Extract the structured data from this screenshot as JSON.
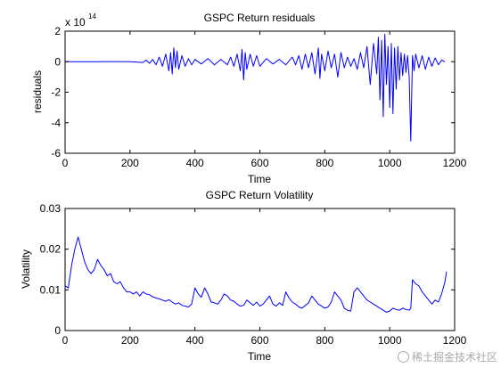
{
  "chart_data": [
    {
      "type": "line",
      "title": "GSPC Return residuals",
      "xlabel": "Time",
      "ylabel": "residuals",
      "exponent_label_prefix": "x 10",
      "exponent_label_power": "14",
      "xlim": [
        0,
        1200
      ],
      "ylim": [
        -6,
        2
      ],
      "xticks": [
        "0",
        "200",
        "400",
        "600",
        "800",
        "1000",
        "1200"
      ],
      "yticks": [
        "-6",
        "-4",
        "-2",
        "0",
        "2"
      ],
      "line_color": "#0000ff",
      "grid": false,
      "series": [
        {
          "x": [
            0,
            50,
            100,
            150,
            200,
            240,
            250,
            260,
            270,
            280,
            290,
            300,
            310,
            320,
            325,
            330,
            335,
            340,
            345,
            350,
            360,
            370,
            380,
            390,
            400,
            420,
            440,
            460,
            480,
            500,
            510,
            520,
            530,
            540,
            545,
            550,
            555,
            560,
            570,
            580,
            590,
            600,
            620,
            640,
            660,
            680,
            700,
            710,
            720,
            730,
            740,
            750,
            760,
            770,
            780,
            785,
            790,
            800,
            810,
            820,
            830,
            840,
            850,
            860,
            870,
            880,
            890,
            900,
            910,
            920,
            930,
            940,
            950,
            960,
            965,
            970,
            975,
            980,
            985,
            990,
            995,
            1000,
            1005,
            1010,
            1015,
            1020,
            1025,
            1030,
            1035,
            1040,
            1045,
            1050,
            1055,
            1060,
            1065,
            1070,
            1075,
            1080,
            1090,
            1100,
            1110,
            1120,
            1130,
            1140,
            1150,
            1160,
            1170
          ],
          "y": [
            0,
            0,
            0,
            0.01,
            0,
            -0.05,
            0.1,
            -0.1,
            0.15,
            -0.2,
            0.3,
            -0.3,
            0.5,
            -0.6,
            0.6,
            -0.8,
            0.9,
            -0.4,
            0.7,
            -0.5,
            0.4,
            -0.3,
            0.2,
            -0.2,
            0.15,
            -0.15,
            0.2,
            -0.2,
            0.15,
            -0.2,
            0.3,
            -0.3,
            0.5,
            -0.6,
            0.8,
            -1.2,
            0.6,
            -0.5,
            0.5,
            -0.3,
            0.4,
            -0.3,
            0.2,
            -0.15,
            0.15,
            -0.2,
            0.3,
            -0.2,
            0.4,
            -0.5,
            0.5,
            -0.4,
            0.6,
            -0.8,
            0.9,
            -1.1,
            0.5,
            -0.6,
            0.7,
            -0.4,
            0.5,
            -1.0,
            0.6,
            -0.4,
            0.3,
            -0.3,
            0.2,
            -0.5,
            0.6,
            -0.4,
            1.0,
            -1.5,
            1.2,
            -0.8,
            1.6,
            -2.5,
            1.4,
            -3.6,
            1.8,
            -1.5,
            1.0,
            -3.0,
            1.2,
            -3.4,
            0.9,
            -1.8,
            1.0,
            -1.2,
            0.6,
            -0.9,
            0.5,
            -0.7,
            0.4,
            -1.0,
            -5.2,
            0.4,
            -0.6,
            0.5,
            -0.4,
            0.4,
            -0.5,
            0.3,
            -0.3,
            0.25,
            -0.2,
            0.1,
            0
          ]
        }
      ]
    },
    {
      "type": "line",
      "title": "GSPC Return Volatility",
      "xlabel": "Time",
      "ylabel": "Volatility",
      "xlim": [
        0,
        1200
      ],
      "ylim": [
        0,
        0.03
      ],
      "xticks": [
        "0",
        "200",
        "400",
        "600",
        "800",
        "1000",
        "1200"
      ],
      "yticks": [
        "0",
        "0.01",
        "0.02",
        "0.03"
      ],
      "line_color": "#0000ff",
      "grid": false,
      "series": [
        {
          "x": [
            0,
            10,
            20,
            30,
            40,
            50,
            60,
            70,
            80,
            90,
            100,
            110,
            120,
            130,
            140,
            150,
            160,
            170,
            180,
            190,
            200,
            210,
            220,
            230,
            240,
            250,
            260,
            270,
            280,
            290,
            300,
            310,
            320,
            330,
            340,
            350,
            360,
            370,
            380,
            390,
            400,
            410,
            420,
            430,
            440,
            450,
            460,
            470,
            480,
            490,
            500,
            510,
            520,
            530,
            540,
            550,
            560,
            570,
            580,
            590,
            600,
            610,
            620,
            630,
            640,
            650,
            660,
            670,
            680,
            690,
            700,
            710,
            720,
            730,
            740,
            750,
            760,
            770,
            780,
            790,
            800,
            810,
            820,
            830,
            840,
            850,
            860,
            870,
            880,
            890,
            900,
            910,
            920,
            930,
            940,
            950,
            960,
            970,
            980,
            990,
            1000,
            1010,
            1020,
            1030,
            1040,
            1050,
            1060,
            1065,
            1070,
            1080,
            1090,
            1100,
            1110,
            1120,
            1130,
            1140,
            1150,
            1160,
            1170,
            1175
          ],
          "y": [
            0.011,
            0.0105,
            0.016,
            0.02,
            0.023,
            0.02,
            0.017,
            0.015,
            0.014,
            0.015,
            0.0175,
            0.016,
            0.015,
            0.0135,
            0.014,
            0.012,
            0.0115,
            0.012,
            0.0105,
            0.0095,
            0.0095,
            0.009,
            0.0095,
            0.0085,
            0.0095,
            0.009,
            0.0088,
            0.0083,
            0.008,
            0.0078,
            0.0075,
            0.0072,
            0.0076,
            0.007,
            0.0065,
            0.0068,
            0.0062,
            0.006,
            0.0058,
            0.0065,
            0.0105,
            0.009,
            0.0082,
            0.0105,
            0.009,
            0.007,
            0.0068,
            0.0065,
            0.0075,
            0.009,
            0.0085,
            0.0075,
            0.0072,
            0.0065,
            0.006,
            0.0062,
            0.0075,
            0.0068,
            0.0062,
            0.007,
            0.006,
            0.0065,
            0.0075,
            0.0085,
            0.0065,
            0.006,
            0.0068,
            0.0062,
            0.0095,
            0.008,
            0.007,
            0.0065,
            0.0058,
            0.0055,
            0.0062,
            0.0068,
            0.0085,
            0.0075,
            0.0065,
            0.006,
            0.0055,
            0.0058,
            0.007,
            0.0095,
            0.0085,
            0.0075,
            0.0055,
            0.005,
            0.0048,
            0.0095,
            0.0105,
            0.0095,
            0.0085,
            0.0075,
            0.007,
            0.0065,
            0.006,
            0.0055,
            0.005,
            0.0045,
            0.0048,
            0.0055,
            0.0052,
            0.005,
            0.0055,
            0.0052,
            0.005,
            0.0055,
            0.0125,
            0.0115,
            0.011,
            0.0095,
            0.0085,
            0.0075,
            0.0065,
            0.0075,
            0.007,
            0.009,
            0.012,
            0.0145
          ]
        }
      ]
    }
  ],
  "watermark": {
    "text": "稀土掘金技术社区"
  }
}
